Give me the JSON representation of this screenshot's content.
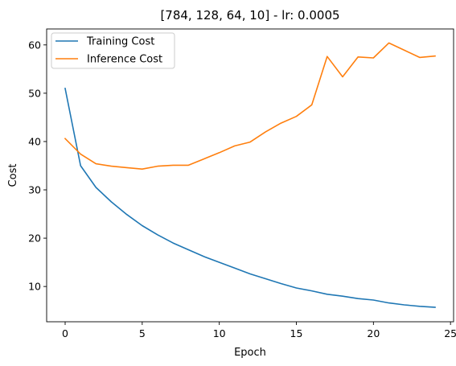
{
  "chart_data": {
    "type": "line",
    "title": "[784, 128, 64, 10] - lr: 0.0005",
    "xlabel": "Epoch",
    "ylabel": "Cost",
    "xlim": [
      -1.2,
      25.2
    ],
    "ylim": [
      2.7,
      63.3
    ],
    "xticks": [
      0,
      5,
      10,
      15,
      20,
      25
    ],
    "yticks": [
      10,
      20,
      30,
      40,
      50,
      60
    ],
    "grid": false,
    "legend_position": "top-left",
    "x": [
      0,
      1,
      2,
      3,
      4,
      5,
      6,
      7,
      8,
      9,
      10,
      11,
      12,
      13,
      14,
      15,
      16,
      17,
      18,
      19,
      20,
      21,
      22,
      23,
      24
    ],
    "series": [
      {
        "name": "Training Cost",
        "color": "#1f77b4",
        "values": [
          51.0,
          35.0,
          30.5,
          27.5,
          24.9,
          22.6,
          20.7,
          19.0,
          17.6,
          16.2,
          15.0,
          13.8,
          12.6,
          11.6,
          10.6,
          9.7,
          9.1,
          8.4,
          8.0,
          7.5,
          7.2,
          6.6,
          6.2,
          5.9,
          5.7
        ]
      },
      {
        "name": "Inference Cost",
        "color": "#ff7f0e",
        "values": [
          40.6,
          37.4,
          35.4,
          34.9,
          34.6,
          34.3,
          34.9,
          35.1,
          35.1,
          36.4,
          37.7,
          39.1,
          39.9,
          42.0,
          43.8,
          45.2,
          47.6,
          57.6,
          53.4,
          57.5,
          57.3,
          60.4,
          58.9,
          57.4,
          57.7
        ]
      }
    ]
  }
}
